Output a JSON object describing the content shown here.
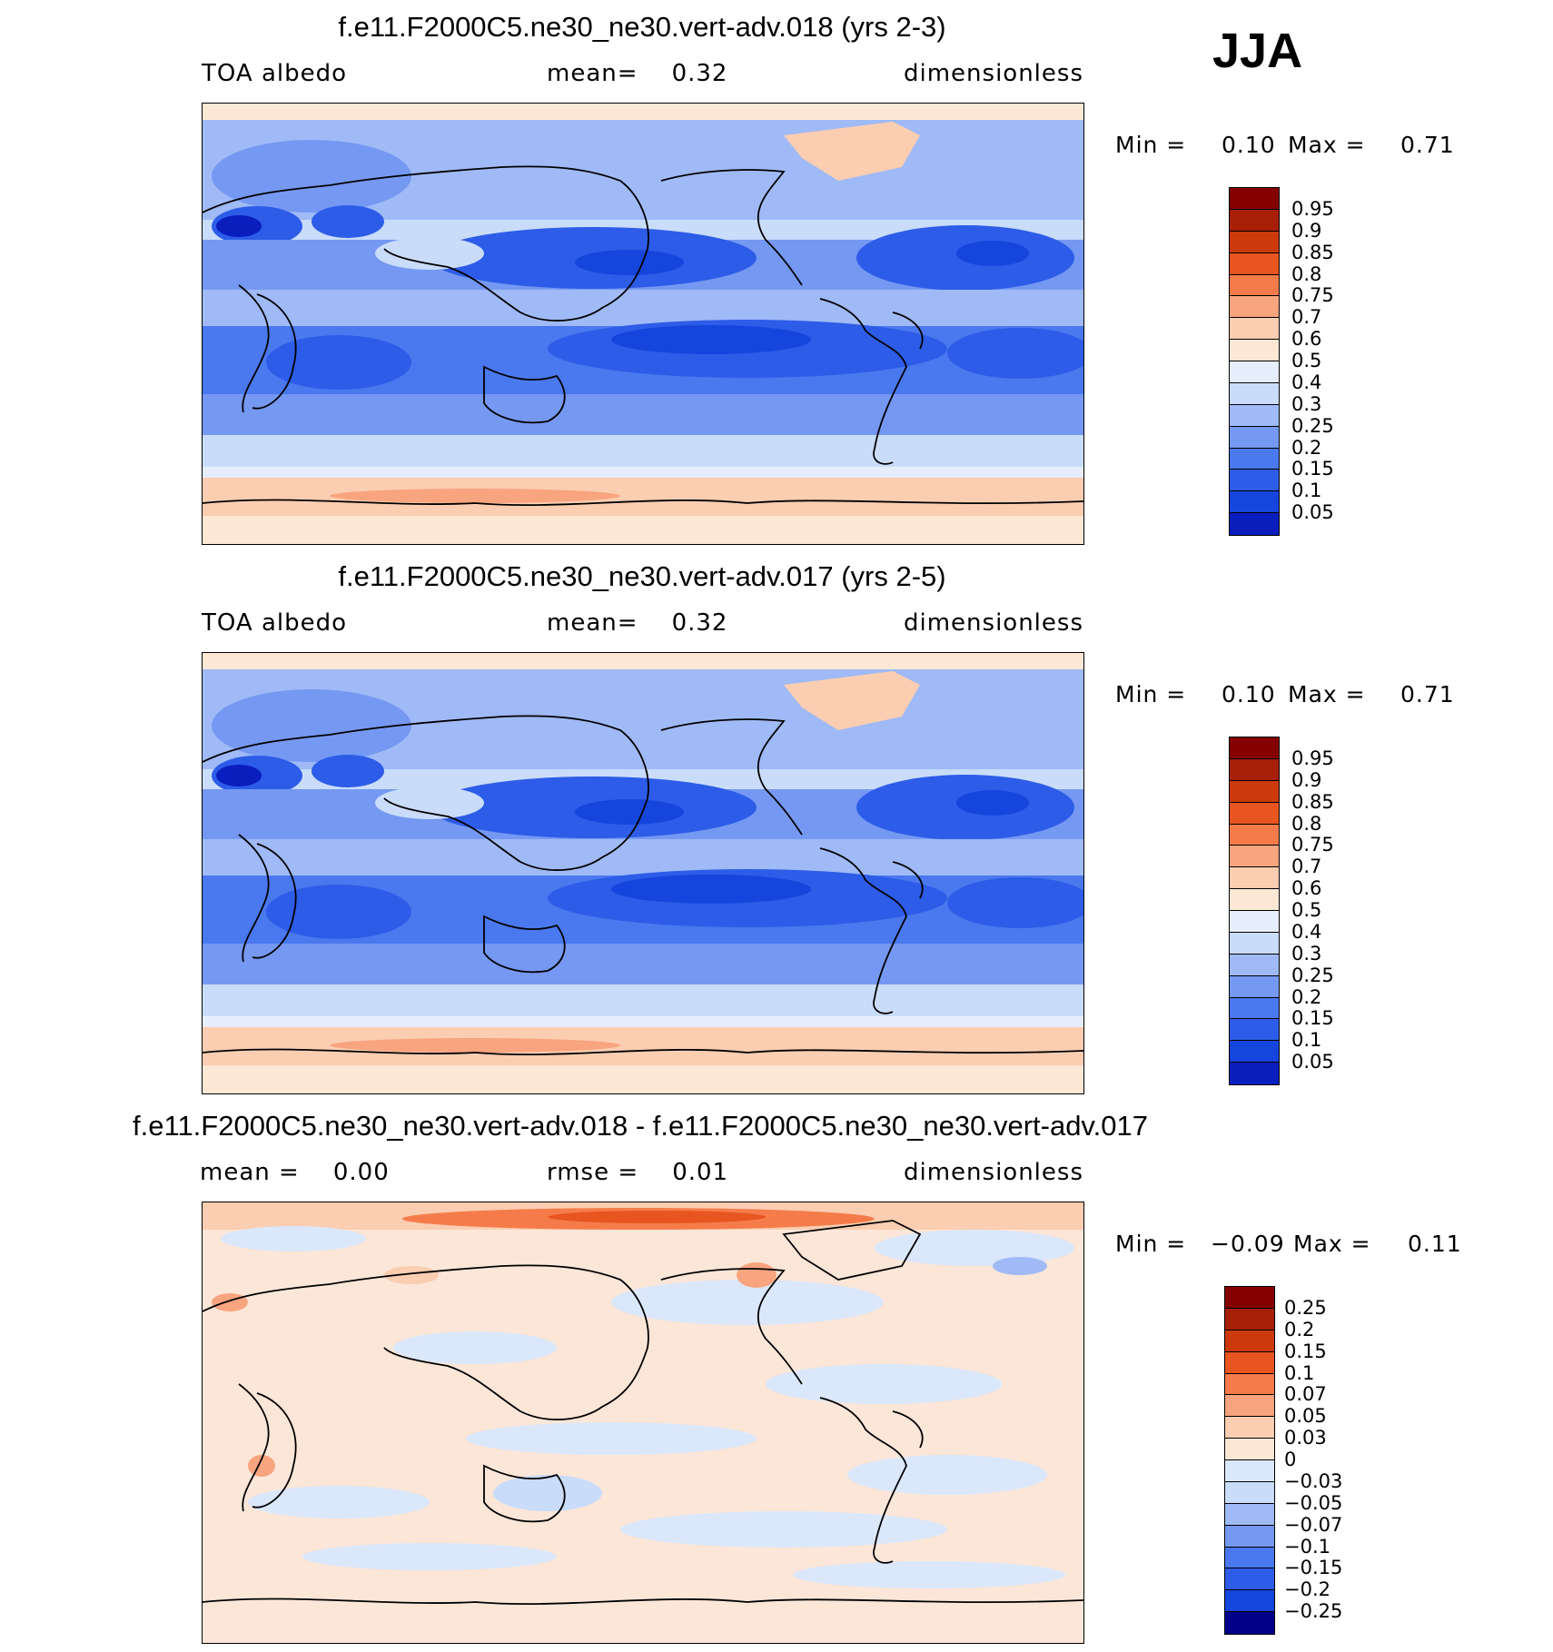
{
  "season": "JJA",
  "colors": {
    "blue_scale": [
      "#00008b",
      "#0a1ebe",
      "#0c35d0",
      "#1545dc",
      "#2d5ce8",
      "#4a78ee",
      "#7598f2",
      "#9fbaf6",
      "#c9dcfa",
      "#e6eefc"
    ],
    "red_scale": [
      "#fde8d6",
      "#fbcdb1",
      "#f8a47f",
      "#f57c4a",
      "#e85520",
      "#cc3a0c",
      "#a81f08",
      "#850000"
    ],
    "diff_bg": "#fbe6d8",
    "diff_blue": "#dbe7fb"
  },
  "panels": [
    {
      "title": "f.e11.F2000C5.ne30_ne30.vert-adv.018 (yrs 2-3)",
      "left": "TOA albedo",
      "center": "mean=    0.32",
      "right": "dimensionless",
      "min_label": "Min =",
      "min_value": "0.10",
      "max_label": "Max =",
      "max_value": "0.71"
    },
    {
      "title": "f.e11.F2000C5.ne30_ne30.vert-adv.017 (yrs 2-5)",
      "left": "TOA albedo",
      "center": "mean=    0.32",
      "right": "dimensionless",
      "min_label": "Min =",
      "min_value": "0.10",
      "max_label": "Max =",
      "max_value": "0.71"
    },
    {
      "title": "f.e11.F2000C5.ne30_ne30.vert-adv.018 - f.e11.F2000C5.ne30_ne30.vert-adv.017",
      "left": "mean =    0.00",
      "center": "rmse =    0.01",
      "right": "dimensionless",
      "min_label": "Min =",
      "min_value": "−0.09",
      "max_label": "Max =",
      "max_value": "0.11"
    }
  ],
  "colorbars": {
    "albedo": [
      "0.95",
      "0.9",
      "0.85",
      "0.8",
      "0.75",
      "0.7",
      "0.6",
      "0.5",
      "0.4",
      "0.3",
      "0.25",
      "0.2",
      "0.15",
      "0.1",
      "0.05"
    ],
    "albedo_colors": [
      "#850000",
      "#a81f08",
      "#cc3a0c",
      "#e85520",
      "#f57c4a",
      "#f8a47f",
      "#fbcdb1",
      "#fde8d6",
      "#e6eefc",
      "#c9dcfa",
      "#9fbaf6",
      "#7598f2",
      "#4a78ee",
      "#2d5ce8",
      "#1545dc",
      "#0a1ebe"
    ],
    "diff": [
      "0.25",
      "0.2",
      "0.15",
      "0.1",
      "0.07",
      "0.05",
      "0.03",
      "0",
      "−0.03",
      "−0.05",
      "−0.07",
      "−0.1",
      "−0.15",
      "−0.2",
      "−0.25"
    ],
    "diff_colors": [
      "#850000",
      "#a81f08",
      "#cc3a0c",
      "#e85520",
      "#f57c4a",
      "#f8a47f",
      "#fbcdb1",
      "#fde8d6",
      "#dbe7fb",
      "#c9dcfa",
      "#9fbaf6",
      "#7598f2",
      "#4a78ee",
      "#2d5ce8",
      "#1545dc",
      "#00008b"
    ]
  },
  "chart_data": [
    {
      "type": "heatmap",
      "title": "f.e11.F2000C5.ne30_ne30.vert-adv.018 (yrs 2-3)",
      "variable": "TOA albedo",
      "units": "dimensionless",
      "mean": 0.32,
      "min": 0.1,
      "max": 0.71,
      "levels": [
        0.05,
        0.1,
        0.15,
        0.2,
        0.25,
        0.3,
        0.4,
        0.5,
        0.6,
        0.7,
        0.75,
        0.8,
        0.85,
        0.9,
        0.95
      ]
    },
    {
      "type": "heatmap",
      "title": "f.e11.F2000C5.ne30_ne30.vert-adv.017 (yrs 2-5)",
      "variable": "TOA albedo",
      "units": "dimensionless",
      "mean": 0.32,
      "min": 0.1,
      "max": 0.71,
      "levels": [
        0.05,
        0.1,
        0.15,
        0.2,
        0.25,
        0.3,
        0.4,
        0.5,
        0.6,
        0.7,
        0.75,
        0.8,
        0.85,
        0.9,
        0.95
      ]
    },
    {
      "type": "heatmap",
      "title": "f.e11.F2000C5.ne30_ne30.vert-adv.018 - f.e11.F2000C5.ne30_ne30.vert-adv.017",
      "units": "dimensionless",
      "mean": 0.0,
      "rmse": 0.01,
      "min": -0.09,
      "max": 0.11,
      "levels": [
        -0.25,
        -0.2,
        -0.15,
        -0.1,
        -0.07,
        -0.05,
        -0.03,
        0,
        0.03,
        0.05,
        0.07,
        0.1,
        0.15,
        0.2,
        0.25
      ]
    }
  ]
}
